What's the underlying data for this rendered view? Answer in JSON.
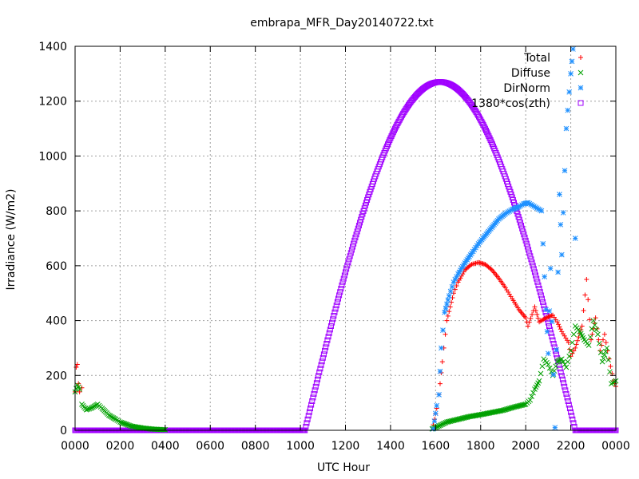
{
  "chart_data": {
    "type": "scatter",
    "title": "embrapa_MFR_Day20140722.txt",
    "xlabel": "UTC Hour",
    "ylabel": "Irradiance (W/m2)",
    "xlim": [
      0,
      24
    ],
    "ylim": [
      0,
      1400
    ],
    "x_ticks": [
      {
        "value": 0,
        "label": "0000"
      },
      {
        "value": 2,
        "label": "0200"
      },
      {
        "value": 4,
        "label": "0400"
      },
      {
        "value": 6,
        "label": "0600"
      },
      {
        "value": 8,
        "label": "0800"
      },
      {
        "value": 10,
        "label": "1000"
      },
      {
        "value": 12,
        "label": "1200"
      },
      {
        "value": 14,
        "label": "1400"
      },
      {
        "value": 16,
        "label": "1600"
      },
      {
        "value": 18,
        "label": "1800"
      },
      {
        "value": 20,
        "label": "2000"
      },
      {
        "value": 22,
        "label": "2200"
      },
      {
        "value": 24,
        "label": "0000"
      }
    ],
    "y_ticks": [
      {
        "value": 0,
        "label": "0"
      },
      {
        "value": 200,
        "label": "200"
      },
      {
        "value": 400,
        "label": "400"
      },
      {
        "value": 600,
        "label": "600"
      },
      {
        "value": 800,
        "label": "800"
      },
      {
        "value": 1000,
        "label": "1000"
      },
      {
        "value": 1200,
        "label": "1200"
      },
      {
        "value": 1400,
        "label": "1400"
      }
    ],
    "grid": true,
    "legend_position": "top-right",
    "series": [
      {
        "name": "Total",
        "color": "#ff0000",
        "marker": "plus",
        "points": [
          [
            0.0,
            140
          ],
          [
            0.05,
            230
          ],
          [
            0.1,
            240
          ],
          [
            0.15,
            170
          ],
          [
            0.2,
            140
          ],
          [
            0.3,
            155
          ],
          [
            15.9,
            20
          ],
          [
            16.05,
            80
          ],
          [
            16.15,
            130
          ],
          [
            16.3,
            250
          ],
          [
            16.5,
            400
          ],
          [
            16.8,
            500
          ],
          [
            17.0,
            540
          ],
          [
            17.3,
            585
          ],
          [
            17.6,
            605
          ],
          [
            17.9,
            612
          ],
          [
            18.2,
            605
          ],
          [
            18.5,
            585
          ],
          [
            18.8,
            555
          ],
          [
            19.1,
            520
          ],
          [
            19.4,
            480
          ],
          [
            19.7,
            440
          ],
          [
            20.0,
            410
          ],
          [
            20.1,
            380
          ],
          [
            20.4,
            450
          ],
          [
            20.6,
            395
          ],
          [
            20.9,
            410
          ],
          [
            21.2,
            420
          ],
          [
            21.4,
            395
          ],
          [
            21.6,
            360
          ],
          [
            21.9,
            320
          ],
          [
            22.0,
            270
          ],
          [
            22.2,
            300
          ],
          [
            22.5,
            380
          ],
          [
            22.7,
            550
          ],
          [
            22.9,
            330
          ],
          [
            23.1,
            410
          ],
          [
            23.3,
            290
          ],
          [
            23.5,
            350
          ],
          [
            23.7,
            260
          ],
          [
            23.9,
            180
          ],
          [
            24.0,
            160
          ]
        ]
      },
      {
        "name": "Diffuse",
        "color": "#00a000",
        "marker": "cross",
        "points": [
          [
            0.0,
            140
          ],
          [
            0.1,
            165
          ],
          [
            0.2,
            150
          ],
          [
            0.3,
            95
          ],
          [
            0.5,
            75
          ],
          [
            0.7,
            80
          ],
          [
            1.0,
            95
          ],
          [
            1.2,
            80
          ],
          [
            1.5,
            55
          ],
          [
            1.8,
            40
          ],
          [
            2.0,
            30
          ],
          [
            2.5,
            15
          ],
          [
            3.0,
            8
          ],
          [
            3.5,
            4
          ],
          [
            4.0,
            2
          ],
          [
            15.85,
            5
          ],
          [
            16.0,
            10
          ],
          [
            16.5,
            30
          ],
          [
            17.0,
            40
          ],
          [
            17.5,
            50
          ],
          [
            18.0,
            57
          ],
          [
            18.5,
            65
          ],
          [
            19.0,
            73
          ],
          [
            19.5,
            85
          ],
          [
            20.0,
            95
          ],
          [
            20.2,
            110
          ],
          [
            20.4,
            150
          ],
          [
            20.6,
            180
          ],
          [
            20.8,
            260
          ],
          [
            21.0,
            240
          ],
          [
            21.2,
            200
          ],
          [
            21.4,
            250
          ],
          [
            21.6,
            260
          ],
          [
            21.8,
            230
          ],
          [
            22.0,
            290
          ],
          [
            22.2,
            380
          ],
          [
            22.4,
            360
          ],
          [
            22.6,
            330
          ],
          [
            22.8,
            310
          ],
          [
            23.0,
            400
          ],
          [
            23.2,
            350
          ],
          [
            23.4,
            250
          ],
          [
            23.6,
            300
          ],
          [
            23.8,
            170
          ],
          [
            24.0,
            180
          ]
        ]
      },
      {
        "name": "DirNorm",
        "color": "#1e90ff",
        "marker": "star",
        "points": [
          [
            15.9,
            5
          ],
          [
            16.05,
            90
          ],
          [
            16.15,
            130
          ],
          [
            16.25,
            300
          ],
          [
            16.4,
            430
          ],
          [
            16.6,
            490
          ],
          [
            16.8,
            540
          ],
          [
            17.0,
            570
          ],
          [
            17.3,
            610
          ],
          [
            17.6,
            645
          ],
          [
            17.9,
            680
          ],
          [
            18.2,
            710
          ],
          [
            18.5,
            740
          ],
          [
            18.8,
            770
          ],
          [
            19.1,
            790
          ],
          [
            19.4,
            805
          ],
          [
            19.7,
            815
          ],
          [
            19.9,
            825
          ],
          [
            20.1,
            830
          ],
          [
            20.3,
            820
          ],
          [
            20.5,
            810
          ],
          [
            20.7,
            800
          ],
          [
            20.9,
            440
          ],
          [
            21.0,
            280
          ],
          [
            21.1,
            590
          ],
          [
            21.3,
            10
          ],
          [
            21.5,
            860
          ],
          [
            21.6,
            640
          ],
          [
            21.8,
            1100
          ],
          [
            22.0,
            1300
          ],
          [
            22.1,
            1390
          ],
          [
            22.2,
            700
          ]
        ]
      },
      {
        "name": "1380*cos(zth)",
        "color": "#a000ff",
        "marker": "square",
        "curve": {
          "sunrise": 10.2,
          "solar_noon": 16.2,
          "sunset": 22.2,
          "peak": 1270
        }
      }
    ]
  }
}
